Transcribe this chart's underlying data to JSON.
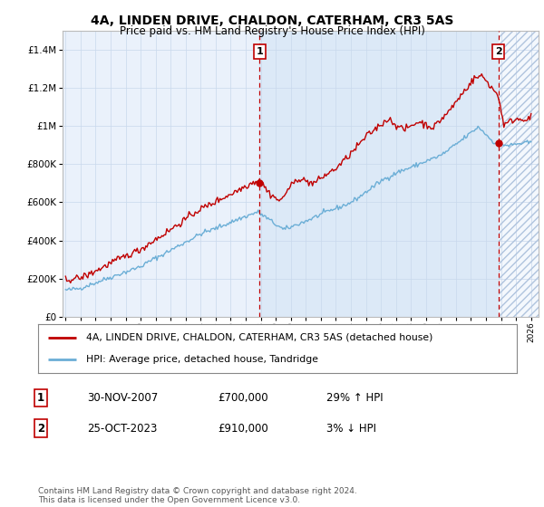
{
  "title": "4A, LINDEN DRIVE, CHALDON, CATERHAM, CR3 5AS",
  "subtitle": "Price paid vs. HM Land Registry's House Price Index (HPI)",
  "ytick_values": [
    0,
    200000,
    400000,
    600000,
    800000,
    1000000,
    1200000,
    1400000
  ],
  "ylim": [
    0,
    1500000
  ],
  "xlim_start": 1994.8,
  "xlim_end": 2026.5,
  "point1_x": 2007.92,
  "point1_y": 700000,
  "point1_label": "1",
  "point2_x": 2023.82,
  "point2_y": 910000,
  "point2_label": "2",
  "vline1_x": 2007.92,
  "vline2_x": 2023.82,
  "legend_line1": "4A, LINDEN DRIVE, CHALDON, CATERHAM, CR3 5AS (detached house)",
  "legend_line2": "HPI: Average price, detached house, Tandridge",
  "table_row1_num": "1",
  "table_row1_date": "30-NOV-2007",
  "table_row1_price": "£700,000",
  "table_row1_hpi": "29% ↑ HPI",
  "table_row2_num": "2",
  "table_row2_date": "25-OCT-2023",
  "table_row2_price": "£910,000",
  "table_row2_hpi": "3% ↓ HPI",
  "footer": "Contains HM Land Registry data © Crown copyright and database right 2024.\nThis data is licensed under the Open Government Licence v3.0.",
  "red_color": "#c00000",
  "blue_color": "#6baed6",
  "shade_color": "#dce9f7",
  "background_color": "#ffffff",
  "plot_bg": "#eaf1fb",
  "grid_color": "#c8d8ec"
}
